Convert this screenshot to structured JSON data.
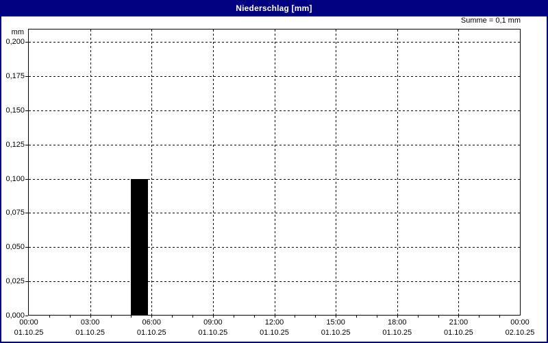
{
  "window": {
    "title": "Niederschlag [mm]"
  },
  "chart_data": {
    "type": "bar",
    "title": "Niederschlag [mm]",
    "unit": "mm",
    "ylabel": "mm",
    "xlabel": "",
    "summary": "Summe = 0,1 mm",
    "grid": "dashed",
    "legend": "none",
    "ylim": [
      0,
      0.21
    ],
    "x_range_hours": [
      0,
      24
    ],
    "yticks": [
      {
        "value": 0.0,
        "label": "0,000"
      },
      {
        "value": 0.025,
        "label": "0,025"
      },
      {
        "value": 0.05,
        "label": "0,050"
      },
      {
        "value": 0.075,
        "label": "0,075"
      },
      {
        "value": 0.1,
        "label": "0,100"
      },
      {
        "value": 0.125,
        "label": "0,125"
      },
      {
        "value": 0.15,
        "label": "0,150"
      },
      {
        "value": 0.175,
        "label": "0,175"
      },
      {
        "value": 0.2,
        "label": "0,200"
      }
    ],
    "xticks": [
      {
        "hour": 0,
        "time": "00:00",
        "date": "01.10.25"
      },
      {
        "hour": 3,
        "time": "03:00",
        "date": "01.10.25"
      },
      {
        "hour": 6,
        "time": "06:00",
        "date": "01.10.25"
      },
      {
        "hour": 9,
        "time": "09:00",
        "date": "01.10.25"
      },
      {
        "hour": 12,
        "time": "12:00",
        "date": "01.10.25"
      },
      {
        "hour": 15,
        "time": "15:00",
        "date": "01.10.25"
      },
      {
        "hour": 18,
        "time": "18:00",
        "date": "01.10.25"
      },
      {
        "hour": 21,
        "time": "21:00",
        "date": "01.10.25"
      },
      {
        "hour": 24,
        "time": "00:00",
        "date": "02.10.25"
      }
    ],
    "minor_tick_every_hours": 1,
    "bars": [
      {
        "hour_start": 5,
        "hour_end": 6,
        "value": 0.1,
        "date": "01.10.25"
      }
    ],
    "colors": {
      "titlebar": "#000080",
      "title_text": "#ffffff",
      "background": "#ffffff",
      "bar": "#000000",
      "grid": "#000000",
      "axis": "#000000",
      "text": "#000000"
    }
  }
}
